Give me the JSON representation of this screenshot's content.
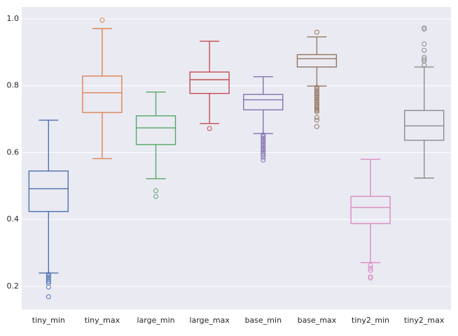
{
  "chart_data": {
    "type": "box",
    "categories": [
      "tiny_min",
      "tiny_max",
      "large_min",
      "large_max",
      "base_min",
      "base_max",
      "tiny2_min",
      "tiny2_max"
    ],
    "series": [
      {
        "name": "tiny_min",
        "color": "#4c72b0",
        "min": 0.24,
        "q1": 0.424,
        "median": 0.492,
        "q3": 0.545,
        "max": 0.697,
        "outliers": [
          0.236,
          0.231,
          0.226,
          0.221,
          0.215,
          0.21,
          0.198,
          0.169
        ]
      },
      {
        "name": "tiny_max",
        "color": "#dd8452",
        "min": 0.582,
        "q1": 0.72,
        "median": 0.779,
        "q3": 0.829,
        "max": 0.971,
        "outliers": [
          0.996
        ]
      },
      {
        "name": "large_min",
        "color": "#55a868",
        "min": 0.522,
        "q1": 0.624,
        "median": 0.674,
        "q3": 0.71,
        "max": 0.781,
        "outliers": [
          0.486,
          0.469
        ]
      },
      {
        "name": "large_max",
        "color": "#c44e52",
        "min": 0.687,
        "q1": 0.777,
        "median": 0.818,
        "q3": 0.841,
        "max": 0.933,
        "outliers": [
          0.672
        ]
      },
      {
        "name": "base_min",
        "color": "#8172b3",
        "min": 0.657,
        "q1": 0.728,
        "median": 0.758,
        "q3": 0.774,
        "max": 0.827,
        "outliers": [
          0.653,
          0.648,
          0.643,
          0.638,
          0.633,
          0.628,
          0.623,
          0.618,
          0.613,
          0.608,
          0.603,
          0.598,
          0.593,
          0.586,
          0.578
        ]
      },
      {
        "name": "base_max",
        "color": "#937860",
        "min": 0.799,
        "q1": 0.856,
        "median": 0.881,
        "q3": 0.893,
        "max": 0.946,
        "outliers": [
          0.96,
          0.795,
          0.79,
          0.785,
          0.78,
          0.775,
          0.77,
          0.765,
          0.76,
          0.755,
          0.75,
          0.745,
          0.74,
          0.735,
          0.73,
          0.726,
          0.722,
          0.705,
          0.697,
          0.678
        ]
      },
      {
        "name": "tiny2_min",
        "color": "#da8bc3",
        "min": 0.271,
        "q1": 0.388,
        "median": 0.436,
        "q3": 0.469,
        "max": 0.58,
        "outliers": [
          0.263,
          0.254,
          0.248,
          0.229,
          0.225
        ]
      },
      {
        "name": "tiny2_max",
        "color": "#8c8c8c",
        "min": 0.524,
        "q1": 0.637,
        "median": 0.68,
        "q3": 0.726,
        "max": 0.856,
        "outliers": [
          0.973,
          0.969,
          0.925,
          0.906,
          0.885,
          0.879,
          0.873,
          0.862
        ]
      }
    ],
    "ylim": [
      0.131,
      1.0355
    ],
    "yticks": [
      0.2,
      0.4,
      0.6,
      0.8,
      {
        "value": 1,
        "label": "1.0"
      }
    ],
    "grid": true
  }
}
